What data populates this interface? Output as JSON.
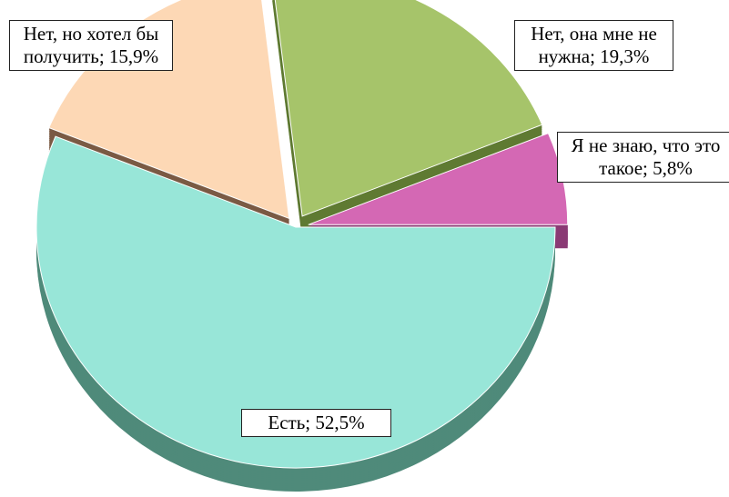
{
  "chart_data": {
    "type": "pie",
    "values": [
      52.5,
      15.9,
      19.3,
      5.8
    ],
    "value_labels": [
      "Есть; 52,5%",
      "Нет, но хотел бы получить; 15,9%",
      "Нет, она мне не нужна; 19,3%",
      "Я не знаю, что это такое; 5,8%"
    ],
    "colors": [
      "#98e6d8",
      "#fdd8b5",
      "#a6c46a",
      "#d468b4"
    ],
    "side_colors": [
      "#4f8a7a",
      "#7a5a44",
      "#5f7a32",
      "#8a3a74"
    ]
  }
}
